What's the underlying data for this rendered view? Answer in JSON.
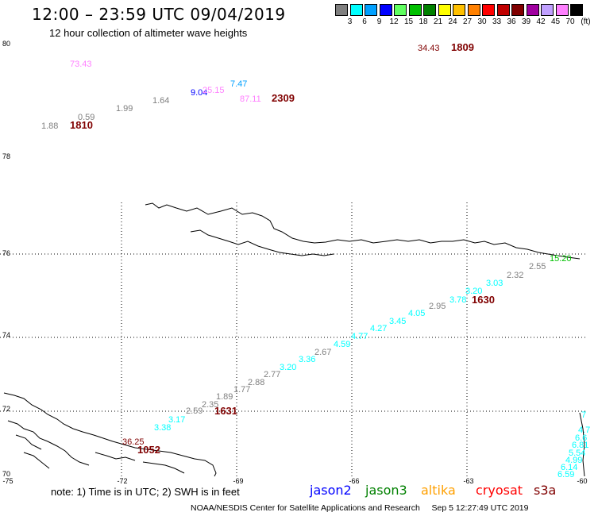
{
  "header": {
    "title": "12:00 – 23:59 UTC 09/04/2019",
    "subtitle": "12 hour collection of altimeter wave heights"
  },
  "legend": {
    "labels": [
      "3",
      "6",
      "9",
      "12",
      "15",
      "18",
      "21",
      "24",
      "27",
      "30",
      "33",
      "36",
      "39",
      "42",
      "45",
      "70"
    ],
    "unit": "(ft)",
    "colors": [
      "#7f7f7f",
      "#00ffff",
      "#00a0ff",
      "#0000ff",
      "#60ff60",
      "#00c000",
      "#008000",
      "#ffff00",
      "#ffc000",
      "#ff8000",
      "#ff0000",
      "#c00000",
      "#800000",
      "#a000a0",
      "#c0a0ff",
      "#ff80ff",
      "#000000"
    ]
  },
  "axes": {
    "lat_labels": [
      "80",
      "78",
      "76",
      "74",
      "72",
      "70"
    ],
    "lon_labels": [
      "-75",
      "-72",
      "-69",
      "-66",
      "-63",
      "-60"
    ]
  },
  "readings": [
    {
      "text": "73.43",
      "color": "#ff80ff"
    },
    {
      "text": "34.43",
      "color": "#800000"
    },
    {
      "text": "1809",
      "color": "#800000",
      "bold": true
    },
    {
      "text": "7.47",
      "color": "#00a0ff"
    },
    {
      "text": "9.04",
      "color": "#0000ff"
    },
    {
      "text": "25.15",
      "color": "#ff80ff"
    },
    {
      "text": "87.11",
      "color": "#ff80ff"
    },
    {
      "text": "2309",
      "color": "#800000",
      "bold": true
    },
    {
      "text": "1.99",
      "color": "#7f7f7f"
    },
    {
      "text": "1.64",
      "color": "#7f7f7f"
    },
    {
      "text": "0.59",
      "color": "#7f7f7f"
    },
    {
      "text": "1.88",
      "color": "#7f7f7f"
    },
    {
      "text": "1810",
      "color": "#800000",
      "bold": true
    },
    {
      "text": "15.20",
      "color": "#00c000"
    },
    {
      "text": "2.55",
      "color": "#7f7f7f"
    },
    {
      "text": "2.32",
      "color": "#7f7f7f"
    },
    {
      "text": "3.03",
      "color": "#00ffff"
    },
    {
      "text": "3.20",
      "color": "#00ffff"
    },
    {
      "text": "3.78",
      "color": "#00ffff"
    },
    {
      "text": "1630",
      "color": "#800000",
      "bold": true
    },
    {
      "text": "2.95",
      "color": "#7f7f7f"
    },
    {
      "text": "4.05",
      "color": "#00ffff"
    },
    {
      "text": "3.45",
      "color": "#00ffff"
    },
    {
      "text": "4.27",
      "color": "#00ffff"
    },
    {
      "text": "4.77",
      "color": "#00ffff"
    },
    {
      "text": "4.59",
      "color": "#00ffff"
    },
    {
      "text": "2.67",
      "color": "#7f7f7f"
    },
    {
      "text": "3.36",
      "color": "#00ffff"
    },
    {
      "text": "3.20",
      "color": "#00ffff"
    },
    {
      "text": "2.77",
      "color": "#7f7f7f"
    },
    {
      "text": "2.88",
      "color": "#7f7f7f"
    },
    {
      "text": "1.77",
      "color": "#7f7f7f"
    },
    {
      "text": "1.89",
      "color": "#7f7f7f"
    },
    {
      "text": "2.35",
      "color": "#7f7f7f"
    },
    {
      "text": "2.59",
      "color": "#7f7f7f"
    },
    {
      "text": "1631",
      "color": "#800000",
      "bold": true
    },
    {
      "text": "3.17",
      "color": "#00ffff"
    },
    {
      "text": "3.38",
      "color": "#00ffff"
    },
    {
      "text": "36.25",
      "color": "#800000"
    },
    {
      "text": "1052",
      "color": "#800000",
      "bold": true
    },
    {
      "text": "7",
      "color": "#00ffff"
    },
    {
      "text": "4.7",
      "color": "#00ffff"
    },
    {
      "text": "6.6",
      "color": "#00ffff"
    },
    {
      "text": "6.81",
      "color": "#00ffff"
    },
    {
      "text": "5.54",
      "color": "#00ffff"
    },
    {
      "text": "4.99",
      "color": "#00ffff"
    },
    {
      "text": "6.14",
      "color": "#00ffff"
    },
    {
      "text": "6.59",
      "color": "#00ffff"
    }
  ],
  "note": "note: 1) Time is in UTC; 2) SWH is in feet",
  "satellites": [
    {
      "name": "jason2",
      "color": "#0000ff"
    },
    {
      "name": "jason3",
      "color": "#008000"
    },
    {
      "name": "altika",
      "color": "#ffa000"
    },
    {
      "name": "cryosat",
      "color": "#ff0000"
    },
    {
      "name": "s3a",
      "color": "#800000"
    }
  ],
  "footer": {
    "center": "NOAA/NESDIS Center for Satellite Applications and Research",
    "timestamp": "Sep  5 12:27:49 UTC 2019"
  }
}
